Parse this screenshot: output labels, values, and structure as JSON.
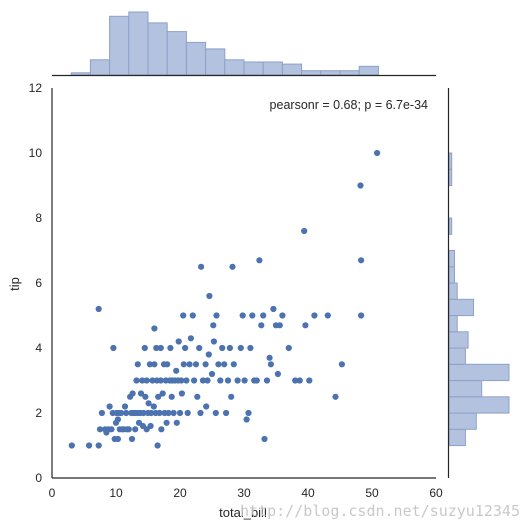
{
  "chart_data": {
    "type": "scatter",
    "kind": "jointplot",
    "xlabel": "total_bill",
    "ylabel": "tip",
    "xlim": [
      0,
      60
    ],
    "ylim": [
      0,
      12
    ],
    "xticks": [
      "0",
      "10",
      "20",
      "30",
      "40",
      "50",
      "60"
    ],
    "yticks": [
      "0",
      "2",
      "4",
      "6",
      "8",
      "10",
      "12"
    ],
    "annotation": "pearsonr = 0.68; p = 6.7e-34",
    "grid": false,
    "colors": {
      "points": "#4c72b0",
      "hist_fill": "#b3c2de",
      "hist_edge": "#8da1c8",
      "axis": "#262626"
    },
    "points": [
      [
        3.1,
        1.0
      ],
      [
        5.8,
        1.0
      ],
      [
        7.3,
        1.0
      ],
      [
        7.3,
        5.2
      ],
      [
        7.5,
        1.5
      ],
      [
        7.8,
        2.0
      ],
      [
        8.3,
        1.5
      ],
      [
        8.5,
        1.4
      ],
      [
        8.8,
        1.5
      ],
      [
        9.0,
        2.2
      ],
      [
        9.3,
        1.5
      ],
      [
        9.5,
        2.0
      ],
      [
        9.6,
        4.0
      ],
      [
        9.8,
        1.2
      ],
      [
        10.0,
        1.7
      ],
      [
        10.1,
        2.0
      ],
      [
        10.3,
        1.8
      ],
      [
        10.3,
        1.2
      ],
      [
        10.5,
        2.0
      ],
      [
        10.6,
        1.5
      ],
      [
        10.8,
        2.0
      ],
      [
        11.0,
        1.5
      ],
      [
        11.2,
        1.5
      ],
      [
        11.4,
        2.2
      ],
      [
        11.6,
        2.0
      ],
      [
        11.7,
        1.5
      ],
      [
        12.0,
        1.5
      ],
      [
        12.2,
        2.5
      ],
      [
        12.4,
        2.0
      ],
      [
        12.5,
        1.2
      ],
      [
        12.6,
        2.6
      ],
      [
        12.8,
        2.0
      ],
      [
        13.0,
        1.5
      ],
      [
        13.0,
        2.0
      ],
      [
        13.2,
        3.0
      ],
      [
        13.4,
        2.0
      ],
      [
        13.4,
        3.5
      ],
      [
        13.6,
        1.7
      ],
      [
        13.8,
        2.0
      ],
      [
        13.9,
        2.6
      ],
      [
        14.1,
        3.0
      ],
      [
        14.2,
        1.6
      ],
      [
        14.3,
        2.0
      ],
      [
        14.5,
        4.0
      ],
      [
        14.6,
        2.5
      ],
      [
        14.8,
        1.5
      ],
      [
        14.8,
        3.0
      ],
      [
        15.0,
        2.0
      ],
      [
        15.1,
        2.3
      ],
      [
        15.3,
        3.5
      ],
      [
        15.4,
        1.6
      ],
      [
        15.5,
        2.0
      ],
      [
        15.7,
        3.0
      ],
      [
        15.9,
        2.2
      ],
      [
        16.0,
        4.6
      ],
      [
        16.0,
        3.5
      ],
      [
        16.2,
        2.0
      ],
      [
        16.3,
        4.0
      ],
      [
        16.4,
        3.0
      ],
      [
        16.5,
        1.0
      ],
      [
        16.6,
        2.5
      ],
      [
        16.8,
        2.0
      ],
      [
        17.0,
        3.0
      ],
      [
        17.0,
        4.0
      ],
      [
        17.1,
        1.5
      ],
      [
        17.3,
        2.6
      ],
      [
        17.5,
        3.5
      ],
      [
        17.6,
        2.0
      ],
      [
        17.8,
        3.0
      ],
      [
        17.9,
        1.7
      ],
      [
        18.0,
        3.5
      ],
      [
        18.2,
        2.0
      ],
      [
        18.4,
        3.0
      ],
      [
        18.5,
        4.0
      ],
      [
        18.7,
        2.5
      ],
      [
        18.8,
        3.0
      ],
      [
        19.0,
        2.0
      ],
      [
        19.2,
        3.0
      ],
      [
        19.4,
        3.3
      ],
      [
        19.5,
        1.7
      ],
      [
        19.7,
        3.0
      ],
      [
        19.8,
        4.2
      ],
      [
        20.0,
        2.0
      ],
      [
        20.2,
        3.0
      ],
      [
        20.3,
        2.6
      ],
      [
        20.5,
        5.0
      ],
      [
        20.6,
        3.5
      ],
      [
        20.8,
        4.0
      ],
      [
        21.0,
        3.0
      ],
      [
        21.2,
        2.0
      ],
      [
        21.5,
        3.5
      ],
      [
        21.7,
        4.3
      ],
      [
        22.0,
        5.0
      ],
      [
        22.2,
        3.0
      ],
      [
        22.5,
        3.5
      ],
      [
        22.7,
        2.5
      ],
      [
        23.0,
        4.0
      ],
      [
        23.2,
        2.0
      ],
      [
        23.3,
        6.5
      ],
      [
        23.6,
        3.0
      ],
      [
        24.0,
        3.5
      ],
      [
        24.1,
        2.2
      ],
      [
        24.3,
        3.0
      ],
      [
        24.5,
        3.8
      ],
      [
        24.6,
        5.6
      ],
      [
        25.0,
        3.2
      ],
      [
        25.2,
        4.7
      ],
      [
        25.3,
        4.2
      ],
      [
        25.6,
        2.0
      ],
      [
        25.7,
        5.0
      ],
      [
        26.0,
        3.5
      ],
      [
        26.3,
        3.0
      ],
      [
        26.6,
        4.0
      ],
      [
        26.9,
        3.5
      ],
      [
        27.2,
        2.0
      ],
      [
        27.5,
        3.0
      ],
      [
        27.8,
        4.0
      ],
      [
        28.0,
        2.5
      ],
      [
        28.2,
        6.5
      ],
      [
        28.4,
        3.5
      ],
      [
        29.0,
        3.0
      ],
      [
        29.5,
        4.0
      ],
      [
        29.8,
        5.0
      ],
      [
        30.1,
        3.0
      ],
      [
        30.4,
        1.8
      ],
      [
        30.7,
        2.0
      ],
      [
        31.0,
        4.0
      ],
      [
        31.3,
        5.0
      ],
      [
        31.6,
        3.0
      ],
      [
        32.0,
        3.0
      ],
      [
        32.4,
        6.7
      ],
      [
        32.7,
        4.7
      ],
      [
        33.0,
        5.0
      ],
      [
        33.2,
        1.2
      ],
      [
        33.6,
        3.0
      ],
      [
        34.0,
        3.7
      ],
      [
        34.2,
        3.5
      ],
      [
        34.6,
        5.2
      ],
      [
        35.0,
        4.7
      ],
      [
        35.3,
        3.2
      ],
      [
        35.6,
        4.7
      ],
      [
        36.0,
        5.0
      ],
      [
        37.0,
        4.0
      ],
      [
        38.0,
        3.0
      ],
      [
        38.7,
        3.0
      ],
      [
        39.4,
        7.6
      ],
      [
        39.6,
        4.7
      ],
      [
        40.2,
        3.0
      ],
      [
        41.0,
        5.0
      ],
      [
        43.1,
        5.0
      ],
      [
        44.3,
        2.5
      ],
      [
        45.3,
        3.5
      ],
      [
        48.2,
        9.0
      ],
      [
        48.3,
        6.7
      ],
      [
        48.3,
        5.0
      ],
      [
        50.8,
        10.0
      ]
    ],
    "x_hist": {
      "bins": [
        3,
        6,
        9,
        12,
        15,
        18,
        21,
        24,
        27,
        30,
        33,
        36,
        39,
        42,
        45,
        48,
        51
      ],
      "counts": [
        1,
        7,
        27,
        29,
        24,
        20,
        15,
        12,
        7,
        6,
        6,
        5,
        2,
        2,
        2,
        4
      ]
    },
    "y_hist": {
      "bins": [
        1,
        1.5,
        2,
        2.5,
        3,
        3.5,
        4,
        4.5,
        5,
        5.5,
        6,
        6.5,
        7,
        7.5,
        8,
        8.5,
        9,
        9.5,
        10
      ],
      "counts": [
        6,
        10,
        22,
        12,
        22,
        6,
        7,
        3,
        9,
        3,
        2,
        2,
        0,
        1,
        0,
        0,
        1,
        1
      ]
    }
  },
  "watermark": "http://blog.csdn.net/suzyu12345"
}
